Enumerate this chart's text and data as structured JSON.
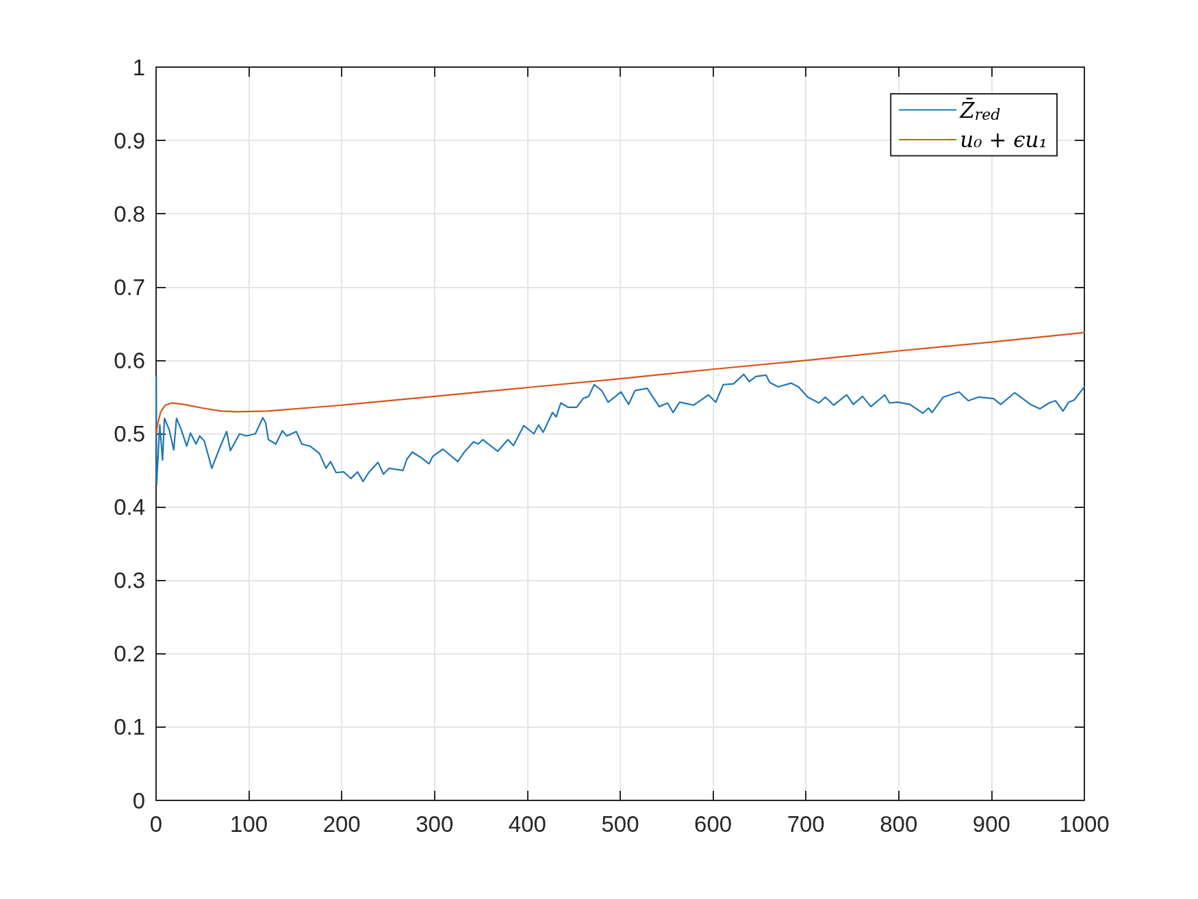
{
  "chart_data": {
    "type": "line",
    "xlim": [
      0,
      1000
    ],
    "xticks": [
      0,
      100,
      200,
      300,
      400,
      500,
      600,
      700,
      800,
      900,
      1000
    ],
    "ylim": [
      0,
      1
    ],
    "yticks": [
      0,
      0.1,
      0.2,
      0.3,
      0.4,
      0.5,
      0.6,
      0.7,
      0.8,
      0.9,
      1
    ],
    "grid": true,
    "legend": "top right",
    "marker": "none",
    "line_style": "solid",
    "series": [
      {
        "name": "Z̄$_{red}$",
        "color": "#1f77b4",
        "x": [
          0,
          0.2,
          0.5,
          4,
          7,
          9,
          14,
          19,
          22,
          27,
          33,
          37,
          43,
          47,
          52,
          60,
          68,
          76,
          80,
          90,
          97,
          107,
          115,
          118,
          121,
          129,
          136,
          141,
          151,
          157,
          166,
          176,
          183,
          188,
          194,
          202,
          210,
          217,
          223,
          229,
          239,
          245,
          251,
          266,
          270,
          276,
          286,
          294,
          298,
          309,
          325,
          332,
          342,
          347,
          352,
          368,
          379,
          385,
          396,
          407,
          412,
          417,
          427,
          431,
          436,
          444,
          453,
          460,
          466,
          472,
          480,
          487,
          501,
          509,
          516,
          529,
          542,
          551,
          557,
          564,
          579,
          595,
          603,
          611,
          622,
          633,
          639,
          646,
          657,
          661,
          670,
          684,
          692,
          702,
          714,
          721,
          730,
          744,
          751,
          761,
          770,
          785,
          790,
          799,
          812,
          826,
          832,
          836,
          848,
          865,
          875,
          886,
          902,
          910,
          925,
          942,
          952,
          962,
          969,
          977,
          983,
          989,
          1000
        ],
        "values": [
          0.5,
          0.578,
          0.43,
          0.512,
          0.464,
          0.521,
          0.506,
          0.478,
          0.521,
          0.506,
          0.483,
          0.501,
          0.486,
          0.497,
          0.49,
          0.453,
          0.479,
          0.503,
          0.477,
          0.5,
          0.497,
          0.5,
          0.522,
          0.515,
          0.492,
          0.486,
          0.504,
          0.497,
          0.503,
          0.486,
          0.483,
          0.473,
          0.453,
          0.462,
          0.447,
          0.448,
          0.439,
          0.448,
          0.435,
          0.447,
          0.461,
          0.445,
          0.453,
          0.45,
          0.465,
          0.475,
          0.467,
          0.459,
          0.469,
          0.479,
          0.462,
          0.475,
          0.489,
          0.486,
          0.492,
          0.476,
          0.492,
          0.484,
          0.511,
          0.5,
          0.512,
          0.502,
          0.529,
          0.523,
          0.542,
          0.536,
          0.536,
          0.548,
          0.551,
          0.567,
          0.559,
          0.543,
          0.557,
          0.54,
          0.559,
          0.562,
          0.537,
          0.542,
          0.529,
          0.543,
          0.539,
          0.553,
          0.543,
          0.567,
          0.568,
          0.581,
          0.571,
          0.578,
          0.58,
          0.57,
          0.564,
          0.569,
          0.564,
          0.55,
          0.542,
          0.55,
          0.539,
          0.553,
          0.54,
          0.551,
          0.537,
          0.553,
          0.542,
          0.543,
          0.54,
          0.528,
          0.535,
          0.529,
          0.55,
          0.557,
          0.545,
          0.55,
          0.548,
          0.54,
          0.556,
          0.54,
          0.534,
          0.542,
          0.545,
          0.531,
          0.543,
          0.546,
          0.564
        ]
      },
      {
        "name": "u₀ + ϵu₁",
        "color": "#d95319",
        "x": [
          0,
          2,
          5,
          10,
          17,
          30,
          50,
          70,
          87,
          120,
          200,
          300,
          400,
          500,
          600,
          700,
          800,
          900,
          1000
        ],
        "values": [
          0.5,
          0.515,
          0.53,
          0.539,
          0.542,
          0.54,
          0.535,
          0.531,
          0.53,
          0.531,
          0.539,
          0.551,
          0.563,
          0.575,
          0.588,
          0.6,
          0.613,
          0.625,
          0.638
        ]
      }
    ]
  }
}
